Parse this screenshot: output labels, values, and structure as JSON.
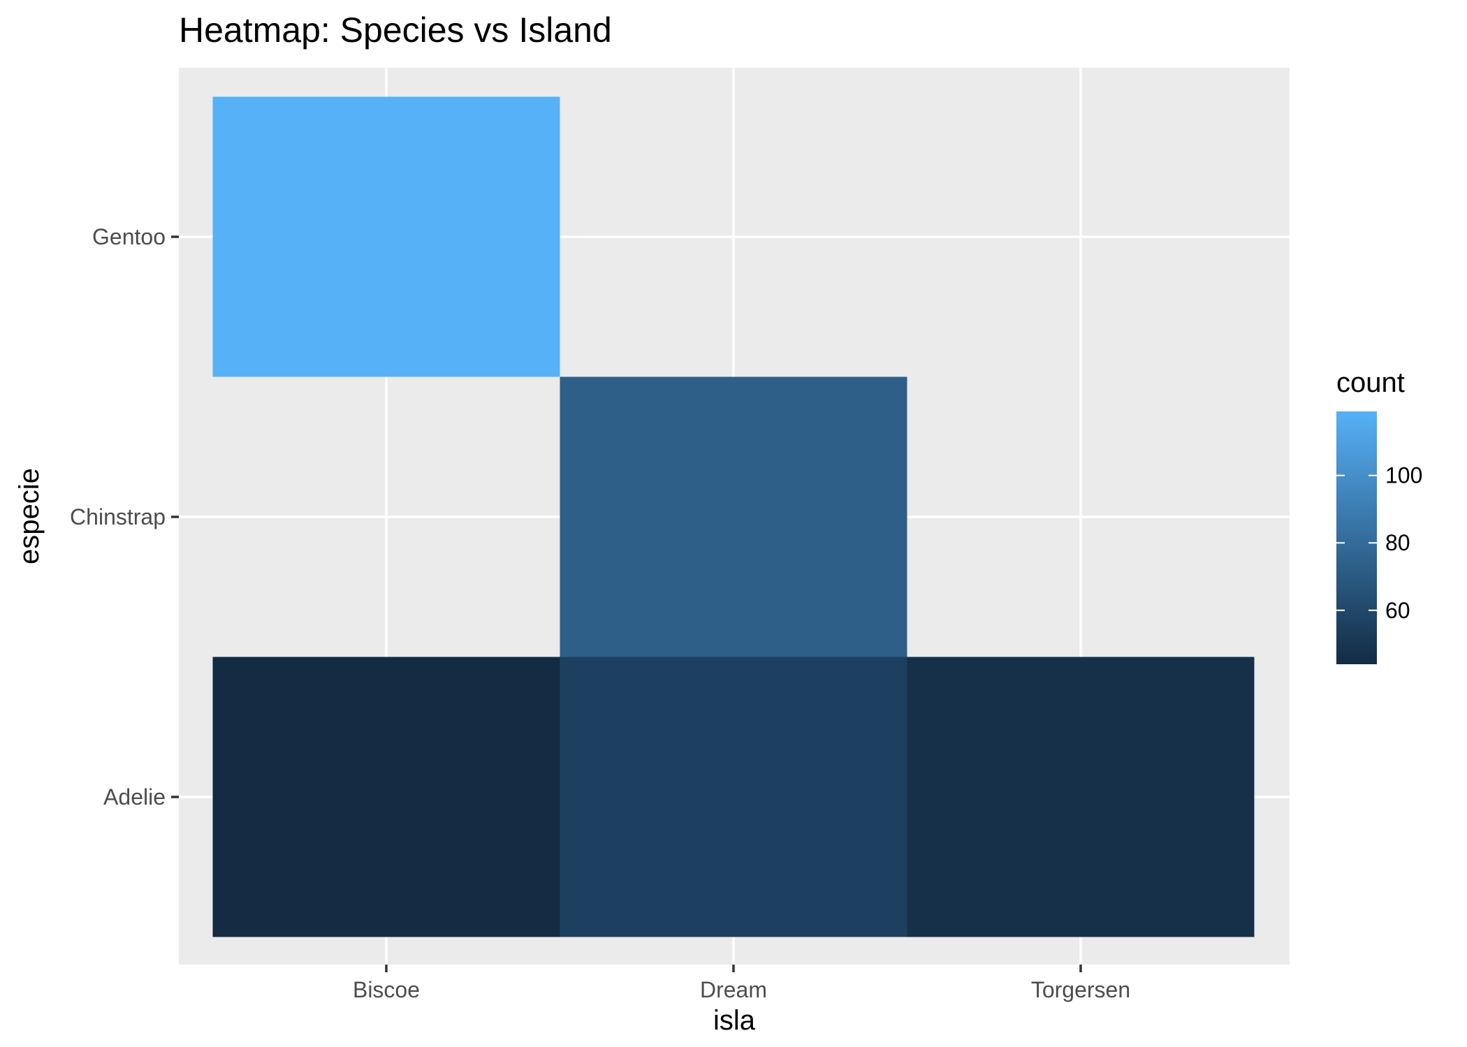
{
  "chart_data": {
    "type": "heatmap",
    "title": "Heatmap: Species vs Island",
    "xlabel": "isla",
    "ylabel": "especie",
    "x_categories": [
      "Biscoe",
      "Dream",
      "Torgersen"
    ],
    "y_categories": [
      "Adelie",
      "Chinstrap",
      "Gentoo"
    ],
    "cells": [
      {
        "x": "Biscoe",
        "y": "Adelie",
        "count": 44
      },
      {
        "x": "Dream",
        "y": "Adelie",
        "count": 56
      },
      {
        "x": "Torgersen",
        "y": "Adelie",
        "count": 47
      },
      {
        "x": "Dream",
        "y": "Chinstrap",
        "count": 73
      },
      {
        "x": "Biscoe",
        "y": "Gentoo",
        "count": 119
      }
    ],
    "grid": true,
    "legend": {
      "title": "count",
      "position": "right",
      "ticks": [
        60,
        80,
        100
      ],
      "range": [
        44,
        119
      ],
      "low_color": "#132B43",
      "high_color": "#56B1F7"
    },
    "panel_background": "#EBEBEB",
    "gridline_color": "#FFFFFF"
  }
}
